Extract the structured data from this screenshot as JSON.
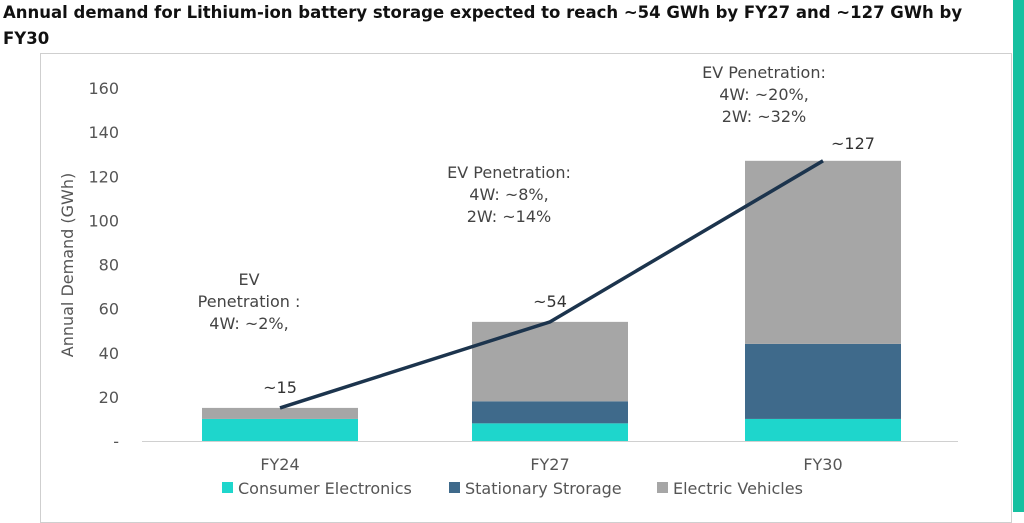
{
  "title": "Annual demand for Lithium-ion battery storage expected to reach ~54 GWh by FY27 and ~127 GWh by FY30",
  "colors": {
    "consumer_electronics": "#1ed6cc",
    "stationary_storage": "#3f6a8b",
    "electric_vehicles": "#a6a6a6",
    "total_line": "#1c344d"
  },
  "chart_data": {
    "type": "bar",
    "stacked": true,
    "categories": [
      "FY24",
      "FY27",
      "FY30"
    ],
    "series": [
      {
        "name": "Consumer Electronics",
        "values": [
          10,
          8,
          10
        ]
      },
      {
        "name": "Stationary Strorage",
        "values": [
          0,
          10,
          34
        ]
      },
      {
        "name": "Electric Vehicles",
        "values": [
          5,
          36,
          83
        ]
      }
    ],
    "line": {
      "values": [
        15,
        54,
        127
      ]
    },
    "data_labels": [
      "~15",
      "~54",
      "~127"
    ],
    "annotations": [
      [
        "EV",
        "Penetration :",
        "4W: ~2%,"
      ],
      [
        "EV Penetration:",
        "4W: ~8%,",
        "2W: ~14%"
      ],
      [
        "EV Penetration:",
        "4W: ~20%,",
        "2W: ~32%"
      ]
    ],
    "ylabel": "Annual Demand (GWh)",
    "xlabel": "",
    "ylim": [
      0,
      160
    ],
    "yticks": [
      0,
      20,
      40,
      60,
      80,
      100,
      120,
      140,
      160
    ],
    "ytick_labels": [
      "-",
      "20",
      "40",
      "60",
      "80",
      "100",
      "120",
      "140",
      "160"
    ],
    "grid": false,
    "legend_position": "bottom"
  }
}
